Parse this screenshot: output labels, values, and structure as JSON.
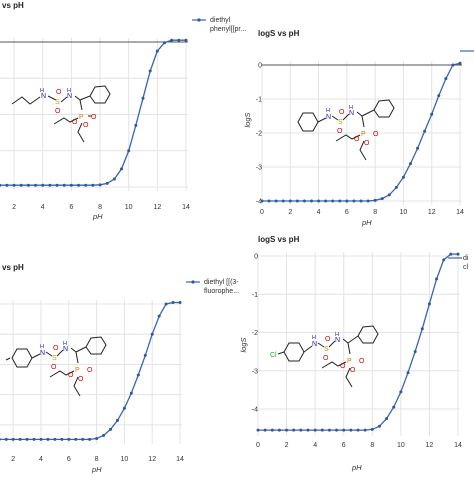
{
  "colors": {
    "line": "#3b64ad",
    "marker": "#2f57a3",
    "zero_line": "#555555",
    "grid": "#e4e4e4",
    "axis_text": "#333333",
    "atom_N": "#1a1ab8",
    "atom_S": "#b8a000",
    "atom_O": "#d40000",
    "atom_P": "#d87a00",
    "atom_Cl": "#1fa81f"
  },
  "chart_data": [
    {
      "type": "line",
      "title": "logS vs pH",
      "title_visible": "vs pH",
      "xlabel": "pH",
      "ylabel": "",
      "xlim": [
        0,
        14
      ],
      "ylim": [
        -4,
        0
      ],
      "grid": true,
      "legend_position": "top-right",
      "x_ticks": [
        "2",
        "4",
        "6",
        "8",
        "10",
        "12",
        "14"
      ],
      "y_ticks": [],
      "series": [
        {
          "name": "diethyl phenyl[[pr...",
          "x": [
            0,
            0.5,
            1,
            1.5,
            2,
            2.5,
            3,
            3.5,
            4,
            4.5,
            5,
            5.5,
            6,
            6.5,
            7,
            7.5,
            8,
            8.5,
            9,
            9.5,
            10,
            10.5,
            11,
            11.5,
            12,
            12.5,
            13,
            13.5,
            14
          ],
          "y": [
            -3.95,
            -3.95,
            -3.95,
            -3.95,
            -3.95,
            -3.95,
            -3.95,
            -3.95,
            -3.95,
            -3.95,
            -3.95,
            -3.95,
            -3.95,
            -3.95,
            -3.95,
            -3.95,
            -3.94,
            -3.9,
            -3.78,
            -3.5,
            -3.0,
            -2.3,
            -1.55,
            -0.8,
            -0.25,
            -0.02,
            0.05,
            0.05,
            0.05
          ]
        }
      ]
    },
    {
      "type": "line",
      "title": "logS vs pH",
      "xlabel": "pH",
      "ylabel": "logS",
      "xlim": [
        0,
        14
      ],
      "ylim": [
        -4,
        0
      ],
      "grid": true,
      "legend_position": "top-right",
      "x_ticks": [
        "0",
        "2",
        "4",
        "6",
        "8",
        "10",
        "12",
        "14"
      ],
      "y_ticks": [
        "0",
        "-1",
        "-2",
        "-3",
        "-4"
      ],
      "series": [
        {
          "name": "",
          "x": [
            0,
            0.5,
            1,
            1.5,
            2,
            2.5,
            3,
            3.5,
            4,
            4.5,
            5,
            5.5,
            6,
            6.5,
            7,
            7.5,
            8,
            8.5,
            9,
            9.5,
            10,
            10.5,
            11,
            11.5,
            12,
            12.5,
            13,
            13.5,
            14
          ],
          "y": [
            -4,
            -4,
            -4,
            -4,
            -4,
            -4,
            -4,
            -4,
            -4,
            -4,
            -4,
            -4,
            -4,
            -4,
            -4,
            -4,
            -3.98,
            -3.93,
            -3.82,
            -3.6,
            -3.3,
            -2.9,
            -2.45,
            -1.95,
            -1.45,
            -0.9,
            -0.4,
            0.0,
            0.05
          ]
        }
      ]
    },
    {
      "type": "line",
      "title": "logS vs pH",
      "title_visible": "vs pH",
      "xlabel": "pH",
      "ylabel": "",
      "xlim": [
        0,
        14
      ],
      "ylim": [
        -4.5,
        0
      ],
      "grid": true,
      "legend_position": "top-right",
      "x_ticks": [
        "2",
        "4",
        "6",
        "8",
        "10",
        "12",
        "14"
      ],
      "y_ticks": [],
      "series": [
        {
          "name": "diethyl [[(3-fluorophe...",
          "x": [
            0,
            0.5,
            1,
            1.5,
            2,
            2.5,
            3,
            3.5,
            4,
            4.5,
            5,
            5.5,
            6,
            6.5,
            7,
            7.5,
            8,
            8.5,
            9,
            9.5,
            10,
            10.5,
            11,
            11.5,
            12,
            12.5,
            13,
            13.5,
            14
          ],
          "y": [
            -4.48,
            -4.48,
            -4.48,
            -4.48,
            -4.48,
            -4.48,
            -4.48,
            -4.48,
            -4.48,
            -4.48,
            -4.48,
            -4.48,
            -4.48,
            -4.48,
            -4.48,
            -4.48,
            -4.45,
            -4.35,
            -4.15,
            -3.85,
            -3.45,
            -2.95,
            -2.35,
            -1.7,
            -1.0,
            -0.4,
            0.0,
            0.05,
            0.05
          ]
        }
      ]
    },
    {
      "type": "line",
      "title": "logS vs pH",
      "xlabel": "pH",
      "ylabel": "logS",
      "xlim": [
        0,
        14
      ],
      "ylim": [
        -4.6,
        0
      ],
      "grid": true,
      "legend_position": "top-right",
      "x_ticks": [
        "0",
        "2",
        "4",
        "6",
        "8",
        "10",
        "12",
        "14"
      ],
      "y_ticks": [
        "0",
        "-1",
        "-2",
        "-3",
        "-4"
      ],
      "series": [
        {
          "name": "di... cl...",
          "x": [
            0,
            0.5,
            1,
            1.5,
            2,
            2.5,
            3,
            3.5,
            4,
            4.5,
            5,
            5.5,
            6,
            6.5,
            7,
            7.5,
            8,
            8.5,
            9,
            9.5,
            10,
            10.5,
            11,
            11.5,
            12,
            12.5,
            13,
            13.5,
            14
          ],
          "y": [
            -4.55,
            -4.55,
            -4.55,
            -4.55,
            -4.55,
            -4.55,
            -4.55,
            -4.55,
            -4.55,
            -4.55,
            -4.55,
            -4.55,
            -4.55,
            -4.55,
            -4.55,
            -4.55,
            -4.53,
            -4.45,
            -4.25,
            -3.95,
            -3.55,
            -3.05,
            -2.5,
            -1.9,
            -1.25,
            -0.6,
            -0.1,
            0.05,
            0.05
          ]
        }
      ]
    }
  ]
}
